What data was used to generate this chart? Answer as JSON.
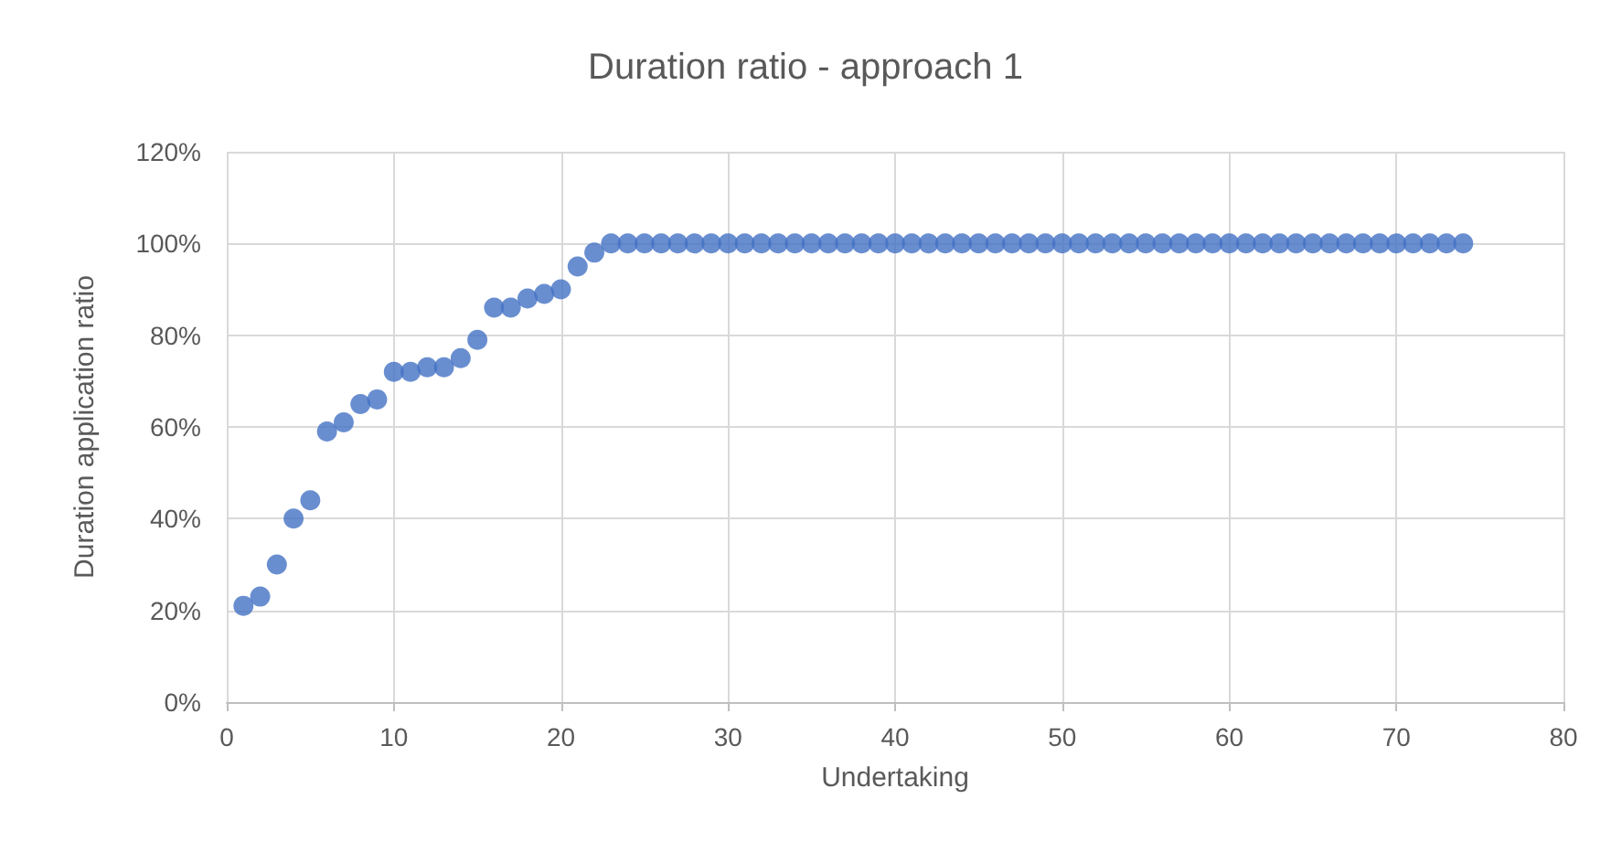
{
  "chart_data": {
    "type": "scatter",
    "title": "Duration ratio - approach 1",
    "xlabel": "Undertaking",
    "ylabel": "Duration application ratio",
    "x": [
      1,
      2,
      3,
      4,
      5,
      6,
      7,
      8,
      9,
      10,
      11,
      12,
      13,
      14,
      15,
      16,
      17,
      18,
      19,
      20,
      21,
      22,
      23,
      24,
      25,
      26,
      27,
      28,
      29,
      30,
      31,
      32,
      33,
      34,
      35,
      36,
      37,
      38,
      39,
      40,
      41,
      42,
      43,
      44,
      45,
      46,
      47,
      48,
      49,
      50,
      51,
      52,
      53,
      54,
      55,
      56,
      57,
      58,
      59,
      60,
      61,
      62,
      63,
      64,
      65,
      66,
      67,
      68,
      69,
      70,
      71,
      72,
      73,
      74
    ],
    "series": [
      {
        "color": "#4472c4",
        "values": [
          21,
          23,
          30,
          40,
          44,
          59,
          61,
          65,
          66,
          72,
          72,
          73,
          73,
          75,
          79,
          86,
          86,
          88,
          89,
          90,
          95,
          98,
          100,
          100,
          100,
          100,
          100,
          100,
          100,
          100,
          100,
          100,
          100,
          100,
          100,
          100,
          100,
          100,
          100,
          100,
          100,
          100,
          100,
          100,
          100,
          100,
          100,
          100,
          100,
          100,
          100,
          100,
          100,
          100,
          100,
          100,
          100,
          100,
          100,
          100,
          100,
          100,
          100,
          100,
          100,
          100,
          100,
          100,
          100,
          100,
          100,
          100,
          100,
          100
        ]
      }
    ],
    "xlim": [
      0,
      80
    ],
    "xticks": [
      0,
      10,
      20,
      30,
      40,
      50,
      60,
      70,
      80
    ],
    "ylim": [
      0,
      120
    ],
    "yticks": [
      {
        "value": 0,
        "label": "0%"
      },
      {
        "value": 20,
        "label": "20%"
      },
      {
        "value": 40,
        "label": "40%"
      },
      {
        "value": 60,
        "label": "60%"
      },
      {
        "value": 80,
        "label": "80%"
      },
      {
        "value": 100,
        "label": "100%"
      },
      {
        "value": 120,
        "label": "120%"
      }
    ],
    "grid": true,
    "marker": "circle"
  }
}
